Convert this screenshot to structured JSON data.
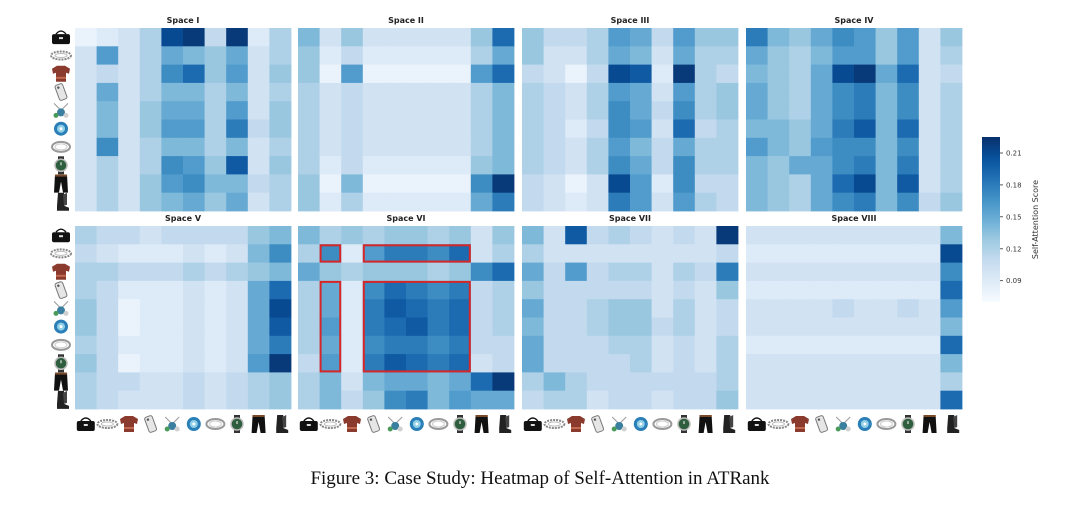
{
  "caption": "Figure 3: Case Study: Heatmap of Self-Attention in ATRank",
  "items": [
    "handbag",
    "bracelet",
    "sweater",
    "phone-case",
    "pendant",
    "earring",
    "ring",
    "watch",
    "trousers",
    "boots"
  ],
  "chart_data": [
    {
      "type": "heatmap",
      "title": "Space I",
      "values": [
        [
          0.08,
          0.09,
          0.1,
          0.12,
          0.21,
          0.22,
          0.11,
          0.22,
          0.09,
          0.12
        ],
        [
          0.1,
          0.16,
          0.1,
          0.12,
          0.15,
          0.14,
          0.13,
          0.15,
          0.1,
          0.12
        ],
        [
          0.1,
          0.11,
          0.1,
          0.12,
          0.17,
          0.19,
          0.13,
          0.16,
          0.1,
          0.13
        ],
        [
          0.1,
          0.15,
          0.1,
          0.12,
          0.14,
          0.14,
          0.12,
          0.14,
          0.1,
          0.12
        ],
        [
          0.1,
          0.14,
          0.1,
          0.13,
          0.15,
          0.15,
          0.12,
          0.16,
          0.1,
          0.13
        ],
        [
          0.1,
          0.14,
          0.1,
          0.13,
          0.16,
          0.16,
          0.12,
          0.18,
          0.11,
          0.13
        ],
        [
          0.1,
          0.17,
          0.1,
          0.12,
          0.14,
          0.14,
          0.12,
          0.14,
          0.1,
          0.12
        ],
        [
          0.1,
          0.12,
          0.1,
          0.12,
          0.17,
          0.16,
          0.13,
          0.2,
          0.1,
          0.13
        ],
        [
          0.1,
          0.12,
          0.1,
          0.13,
          0.16,
          0.17,
          0.14,
          0.14,
          0.11,
          0.12
        ],
        [
          0.1,
          0.12,
          0.1,
          0.13,
          0.14,
          0.15,
          0.13,
          0.15,
          0.1,
          0.12
        ]
      ]
    },
    {
      "type": "heatmap",
      "title": "Space II",
      "values": [
        [
          0.14,
          0.1,
          0.13,
          0.1,
          0.1,
          0.1,
          0.1,
          0.1,
          0.13,
          0.19
        ],
        [
          0.13,
          0.09,
          0.11,
          0.09,
          0.09,
          0.09,
          0.09,
          0.09,
          0.12,
          0.15
        ],
        [
          0.13,
          0.08,
          0.16,
          0.08,
          0.08,
          0.08,
          0.08,
          0.08,
          0.16,
          0.19
        ],
        [
          0.12,
          0.1,
          0.11,
          0.1,
          0.1,
          0.1,
          0.1,
          0.1,
          0.12,
          0.14
        ],
        [
          0.12,
          0.1,
          0.11,
          0.1,
          0.1,
          0.1,
          0.1,
          0.1,
          0.12,
          0.14
        ],
        [
          0.12,
          0.1,
          0.11,
          0.1,
          0.1,
          0.1,
          0.1,
          0.1,
          0.12,
          0.14
        ],
        [
          0.12,
          0.1,
          0.11,
          0.1,
          0.1,
          0.1,
          0.1,
          0.1,
          0.12,
          0.14
        ],
        [
          0.12,
          0.09,
          0.11,
          0.09,
          0.09,
          0.09,
          0.09,
          0.09,
          0.13,
          0.14
        ],
        [
          0.13,
          0.08,
          0.14,
          0.08,
          0.08,
          0.08,
          0.08,
          0.08,
          0.17,
          0.22
        ],
        [
          0.13,
          0.09,
          0.12,
          0.09,
          0.09,
          0.09,
          0.09,
          0.09,
          0.15,
          0.18
        ]
      ]
    },
    {
      "type": "heatmap",
      "title": "Space III",
      "values": [
        [
          0.13,
          0.11,
          0.11,
          0.12,
          0.16,
          0.15,
          0.11,
          0.16,
          0.13,
          0.13
        ],
        [
          0.13,
          0.1,
          0.1,
          0.12,
          0.15,
          0.14,
          0.1,
          0.15,
          0.12,
          0.12
        ],
        [
          0.11,
          0.1,
          0.08,
          0.11,
          0.21,
          0.2,
          0.09,
          0.22,
          0.12,
          0.11
        ],
        [
          0.12,
          0.11,
          0.1,
          0.12,
          0.16,
          0.15,
          0.1,
          0.16,
          0.12,
          0.13
        ],
        [
          0.12,
          0.11,
          0.1,
          0.12,
          0.17,
          0.15,
          0.11,
          0.17,
          0.12,
          0.13
        ],
        [
          0.12,
          0.11,
          0.09,
          0.11,
          0.17,
          0.16,
          0.1,
          0.19,
          0.11,
          0.12
        ],
        [
          0.12,
          0.11,
          0.1,
          0.12,
          0.16,
          0.14,
          0.11,
          0.15,
          0.12,
          0.12
        ],
        [
          0.12,
          0.11,
          0.1,
          0.12,
          0.17,
          0.15,
          0.11,
          0.17,
          0.12,
          0.12
        ],
        [
          0.11,
          0.1,
          0.08,
          0.1,
          0.21,
          0.16,
          0.09,
          0.17,
          0.11,
          0.11
        ],
        [
          0.11,
          0.1,
          0.09,
          0.1,
          0.18,
          0.16,
          0.1,
          0.16,
          0.12,
          0.11
        ]
      ]
    },
    {
      "type": "heatmap",
      "title": "Space IV",
      "values": [
        [
          0.18,
          0.14,
          0.13,
          0.15,
          0.17,
          0.16,
          0.13,
          0.16,
          0.1,
          0.13
        ],
        [
          0.15,
          0.13,
          0.12,
          0.14,
          0.16,
          0.16,
          0.13,
          0.16,
          0.1,
          0.12
        ],
        [
          0.14,
          0.13,
          0.12,
          0.15,
          0.21,
          0.22,
          0.15,
          0.19,
          0.1,
          0.11
        ],
        [
          0.15,
          0.13,
          0.12,
          0.15,
          0.17,
          0.18,
          0.14,
          0.17,
          0.1,
          0.12
        ],
        [
          0.15,
          0.13,
          0.12,
          0.15,
          0.17,
          0.18,
          0.14,
          0.17,
          0.1,
          0.12
        ],
        [
          0.14,
          0.14,
          0.13,
          0.15,
          0.18,
          0.2,
          0.14,
          0.19,
          0.1,
          0.12
        ],
        [
          0.16,
          0.14,
          0.13,
          0.16,
          0.17,
          0.17,
          0.14,
          0.17,
          0.1,
          0.12
        ],
        [
          0.14,
          0.13,
          0.15,
          0.15,
          0.17,
          0.18,
          0.14,
          0.18,
          0.1,
          0.12
        ],
        [
          0.14,
          0.13,
          0.12,
          0.15,
          0.19,
          0.21,
          0.14,
          0.2,
          0.1,
          0.12
        ],
        [
          0.14,
          0.13,
          0.12,
          0.15,
          0.17,
          0.18,
          0.14,
          0.17,
          0.11,
          0.13
        ]
      ]
    },
    {
      "type": "heatmap",
      "title": "Space V",
      "values": [
        [
          0.12,
          0.11,
          0.11,
          0.1,
          0.11,
          0.11,
          0.11,
          0.11,
          0.13,
          0.14
        ],
        [
          0.11,
          0.1,
          0.09,
          0.09,
          0.09,
          0.1,
          0.09,
          0.1,
          0.14,
          0.17
        ],
        [
          0.12,
          0.12,
          0.11,
          0.11,
          0.11,
          0.12,
          0.11,
          0.12,
          0.13,
          0.14
        ],
        [
          0.12,
          0.11,
          0.09,
          0.09,
          0.09,
          0.1,
          0.09,
          0.1,
          0.15,
          0.19
        ],
        [
          0.13,
          0.11,
          0.08,
          0.09,
          0.09,
          0.1,
          0.09,
          0.1,
          0.15,
          0.21
        ],
        [
          0.13,
          0.11,
          0.08,
          0.09,
          0.09,
          0.1,
          0.09,
          0.1,
          0.15,
          0.2
        ],
        [
          0.12,
          0.11,
          0.09,
          0.09,
          0.09,
          0.1,
          0.09,
          0.1,
          0.15,
          0.18
        ],
        [
          0.13,
          0.11,
          0.08,
          0.09,
          0.09,
          0.1,
          0.09,
          0.1,
          0.16,
          0.22
        ],
        [
          0.12,
          0.11,
          0.11,
          0.1,
          0.1,
          0.11,
          0.1,
          0.11,
          0.12,
          0.13
        ],
        [
          0.12,
          0.11,
          0.1,
          0.1,
          0.1,
          0.11,
          0.1,
          0.11,
          0.12,
          0.13
        ]
      ]
    },
    {
      "type": "heatmap",
      "title": "Space VI",
      "values": [
        [
          0.14,
          0.12,
          0.13,
          0.12,
          0.13,
          0.13,
          0.12,
          0.13,
          0.1,
          0.13
        ],
        [
          0.12,
          0.17,
          0.09,
          0.16,
          0.18,
          0.18,
          0.17,
          0.19,
          0.1,
          0.12
        ],
        [
          0.15,
          0.13,
          0.12,
          0.13,
          0.13,
          0.13,
          0.12,
          0.13,
          0.17,
          0.19
        ],
        [
          0.12,
          0.15,
          0.09,
          0.17,
          0.19,
          0.18,
          0.17,
          0.18,
          0.11,
          0.12
        ],
        [
          0.12,
          0.15,
          0.09,
          0.18,
          0.2,
          0.19,
          0.18,
          0.19,
          0.11,
          0.12
        ],
        [
          0.12,
          0.16,
          0.09,
          0.18,
          0.19,
          0.2,
          0.18,
          0.19,
          0.11,
          0.12
        ],
        [
          0.12,
          0.15,
          0.09,
          0.17,
          0.18,
          0.18,
          0.17,
          0.18,
          0.11,
          0.11
        ],
        [
          0.11,
          0.16,
          0.09,
          0.18,
          0.2,
          0.19,
          0.18,
          0.19,
          0.1,
          0.11
        ],
        [
          0.12,
          0.14,
          0.1,
          0.14,
          0.15,
          0.15,
          0.14,
          0.15,
          0.19,
          0.22
        ],
        [
          0.12,
          0.14,
          0.11,
          0.13,
          0.17,
          0.18,
          0.14,
          0.16,
          0.15,
          0.15
        ]
      ]
    },
    {
      "type": "heatmap",
      "title": "Space VII",
      "values": [
        [
          0.14,
          0.1,
          0.2,
          0.11,
          0.12,
          0.11,
          0.1,
          0.11,
          0.1,
          0.22
        ],
        [
          0.12,
          0.1,
          0.1,
          0.1,
          0.1,
          0.1,
          0.1,
          0.1,
          0.1,
          0.11
        ],
        [
          0.15,
          0.11,
          0.16,
          0.11,
          0.12,
          0.12,
          0.1,
          0.12,
          0.11,
          0.18
        ],
        [
          0.13,
          0.11,
          0.11,
          0.11,
          0.11,
          0.11,
          0.1,
          0.11,
          0.1,
          0.13
        ],
        [
          0.15,
          0.11,
          0.11,
          0.12,
          0.13,
          0.13,
          0.1,
          0.12,
          0.1,
          0.11
        ],
        [
          0.14,
          0.11,
          0.11,
          0.12,
          0.13,
          0.13,
          0.11,
          0.12,
          0.1,
          0.11
        ],
        [
          0.15,
          0.11,
          0.11,
          0.11,
          0.12,
          0.12,
          0.1,
          0.11,
          0.1,
          0.12
        ],
        [
          0.15,
          0.11,
          0.11,
          0.11,
          0.11,
          0.12,
          0.1,
          0.11,
          0.1,
          0.12
        ],
        [
          0.12,
          0.14,
          0.12,
          0.11,
          0.11,
          0.11,
          0.11,
          0.11,
          0.11,
          0.12
        ],
        [
          0.11,
          0.12,
          0.12,
          0.1,
          0.11,
          0.11,
          0.1,
          0.11,
          0.11,
          0.13
        ]
      ]
    },
    {
      "type": "heatmap",
      "title": "Space VIII",
      "values": [
        [
          0.1,
          0.1,
          0.1,
          0.1,
          0.1,
          0.1,
          0.1,
          0.1,
          0.1,
          0.14
        ],
        [
          0.09,
          0.09,
          0.09,
          0.09,
          0.09,
          0.09,
          0.09,
          0.09,
          0.09,
          0.21
        ],
        [
          0.1,
          0.1,
          0.1,
          0.1,
          0.1,
          0.1,
          0.1,
          0.1,
          0.1,
          0.17
        ],
        [
          0.09,
          0.09,
          0.09,
          0.09,
          0.09,
          0.09,
          0.09,
          0.09,
          0.09,
          0.19
        ],
        [
          0.1,
          0.1,
          0.1,
          0.1,
          0.11,
          0.1,
          0.1,
          0.11,
          0.1,
          0.16
        ],
        [
          0.1,
          0.1,
          0.1,
          0.1,
          0.1,
          0.1,
          0.1,
          0.1,
          0.1,
          0.14
        ],
        [
          0.09,
          0.09,
          0.09,
          0.09,
          0.09,
          0.09,
          0.09,
          0.09,
          0.09,
          0.19
        ],
        [
          0.1,
          0.1,
          0.1,
          0.1,
          0.1,
          0.1,
          0.1,
          0.1,
          0.1,
          0.14
        ],
        [
          0.1,
          0.1,
          0.1,
          0.1,
          0.1,
          0.1,
          0.1,
          0.1,
          0.1,
          0.12
        ],
        [
          0.1,
          0.1,
          0.1,
          0.1,
          0.1,
          0.1,
          0.1,
          0.1,
          0.1,
          0.19
        ]
      ]
    }
  ],
  "colorbar": {
    "label": "Self-Attention Score",
    "range": [
      0.07,
      0.225
    ],
    "ticks": [
      0.09,
      0.12,
      0.15,
      0.18,
      0.21
    ],
    "tick_labels": [
      "0.09",
      "0.12",
      "0.15",
      "0.18",
      "0.21"
    ]
  },
  "highlight": {
    "panel": "Space VI",
    "color": "#d62728",
    "boxes": [
      {
        "rows": [
          1,
          1
        ],
        "cols": [
          1,
          1
        ]
      },
      {
        "rows": [
          1,
          1
        ],
        "cols": [
          3,
          7
        ]
      },
      {
        "rows": [
          3,
          7
        ],
        "cols": [
          1,
          1
        ]
      },
      {
        "rows": [
          3,
          7
        ],
        "cols": [
          3,
          7
        ]
      }
    ]
  },
  "colors": {
    "low": "#f7fbff",
    "high": "#08306b"
  }
}
